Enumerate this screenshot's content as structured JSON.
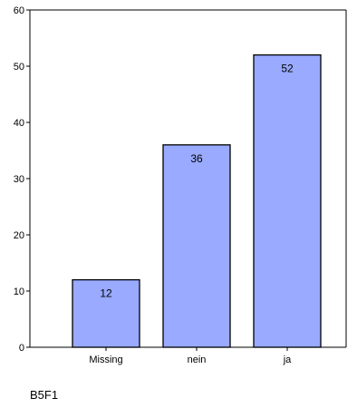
{
  "chart_data": {
    "type": "bar",
    "categories": [
      "Missing",
      "nein",
      "ja"
    ],
    "values": [
      12,
      36,
      52
    ],
    "data_labels": [
      "12",
      "36",
      "52"
    ],
    "title": "",
    "xlabel": "B5F1",
    "ylabel": "",
    "ylim": [
      0,
      60
    ],
    "yticks": [
      0,
      10,
      20,
      30,
      40,
      50,
      60
    ],
    "grid": false,
    "legend": "none",
    "bar_color": "#99aaff",
    "bar_edge_color": "#000000"
  }
}
